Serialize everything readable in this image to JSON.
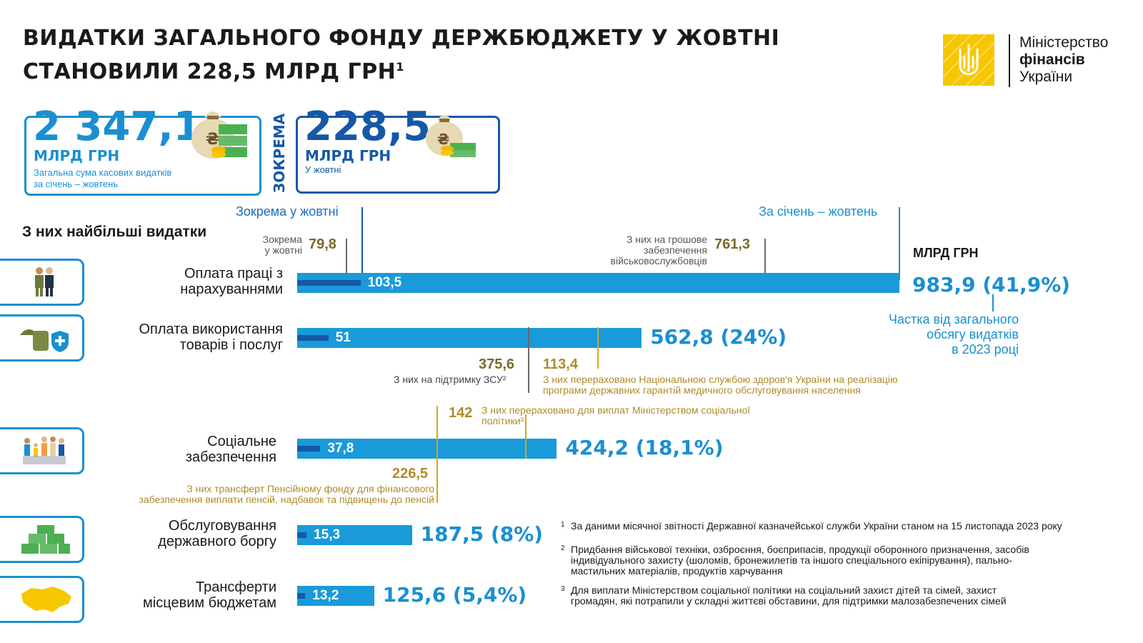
{
  "title": {
    "line1": "ВИДАТКИ ЗАГАЛЬНОГО ФОНДУ ДЕРЖБЮДЖЕТУ У ЖОВТНІ",
    "line2": "СТАНОВИЛИ 228,5 МЛРД ГРН",
    "sup": "1"
  },
  "logo": {
    "line1": "Міністерство",
    "line2": "фінансів",
    "line3": "України"
  },
  "kpi_total": {
    "value": "2 347,1",
    "unit": "МЛРД ГРН",
    "sub1": "Загальна сума касових видатків",
    "sub2": "за січень – жовтень"
  },
  "zokrema": "ЗОКРЕМА",
  "kpi_month": {
    "value": "228,5",
    "unit": "МЛРД ГРН",
    "sub": "У жовтні"
  },
  "headers": {
    "month": "Зокрема у жовтні",
    "ytd": "За січень – жовтень",
    "section": "З них найбільші видатки",
    "unit": "МЛРД ГРН"
  },
  "share_note": {
    "l1": "Частка від загального",
    "l2": "обсягу видатків",
    "l3": "в 2023 році"
  },
  "categories": [
    {
      "label1": "Оплата праці з",
      "label2": "нарахуваннями",
      "month": "103,5",
      "total": "983,9 (41,9%)"
    },
    {
      "label1": "Оплата використання",
      "label2": "товарів і послуг",
      "month": "51",
      "total": "562,8 (24%)"
    },
    {
      "label1": "Соціальне",
      "label2": "забезпечення",
      "month": "37,8",
      "total": "424,2 (18,1%)"
    },
    {
      "label1": "Обслуговування",
      "label2": "державного боргу",
      "month": "15,3",
      "total": "187,5 (8%)"
    },
    {
      "label1": "Трансферти",
      "label2": "місцевим бюджетам",
      "month": "13,2",
      "total": "125,6 (5,4%)"
    }
  ],
  "annotations": {
    "wage_month": {
      "l1": "Зокрема",
      "l2": "у жовтні",
      "value": "79,8"
    },
    "wage_military": {
      "l1": "З них на грошове",
      "l2": "забезпечення",
      "l3": "військовослужбовців",
      "value": "761,3"
    },
    "goods_zsu": {
      "value": "375,6",
      "text": "З них на підтримку ЗСУ²"
    },
    "goods_health": {
      "value": "113,4",
      "l1": "З них перераховано Національною службою здоров'я України на реалізацію",
      "l2": "програми державних гарантій медичного обслуговування населення"
    },
    "social_minsoc": {
      "value": "142",
      "l1": "З них перераховано для виплат Міністерством соціальної",
      "l2": "політики³"
    },
    "social_pension": {
      "value": "226,5",
      "l1": "З них трансферт Пенсійному фонду для фінансового",
      "l2": "забезпечення виплати пенсій, надбавок та підвищень до пенсій"
    }
  },
  "footnotes": [
    {
      "n": "1",
      "l1": "За даними місячної звітності Державної казначейської служби України станом на 15 листопада 2023 року",
      "l2": "",
      "l3": ""
    },
    {
      "n": "2",
      "l1": "Придбання військової техніки, озброєння, боєприпасів, продукції оборонного призначення, засобів",
      "l2": "індивідуального захисту (шоломів, бронежилетів та іншого спеціального екіпірування), пально-",
      "l3": "мастильних матеріалів, продуктів харчування"
    },
    {
      "n": "3",
      "l1": "Для виплати Міністерством соціальної політики на соціальний захист дітей та сімей, захист",
      "l2": "громадян, які потрапили у складні життєві обставини, для підтримки малозабезпечених сімей",
      "l3": ""
    }
  ],
  "chart_data": {
    "type": "bar",
    "categories": [
      "Оплата праці з нарахуваннями",
      "Оплата використання товарів і послуг",
      "Соціальне забезпечення",
      "Обслуговування державного боргу",
      "Трансферти місцевим бюджетам"
    ],
    "series": [
      {
        "name": "За січень – жовтень",
        "values": [
          983.9,
          562.8,
          424.2,
          187.5,
          125.6
        ]
      },
      {
        "name": "Зокрема у жовтні",
        "values": [
          103.5,
          51,
          37.8,
          15.3,
          13.2
        ]
      }
    ],
    "shares_pct": [
      41.9,
      24,
      18.1,
      8,
      5.4
    ],
    "ylabel": "МЛРД ГРН",
    "colors": {
      "total": "#1a9ad9",
      "month": "#1558a6",
      "accent": "#f6c700"
    }
  }
}
